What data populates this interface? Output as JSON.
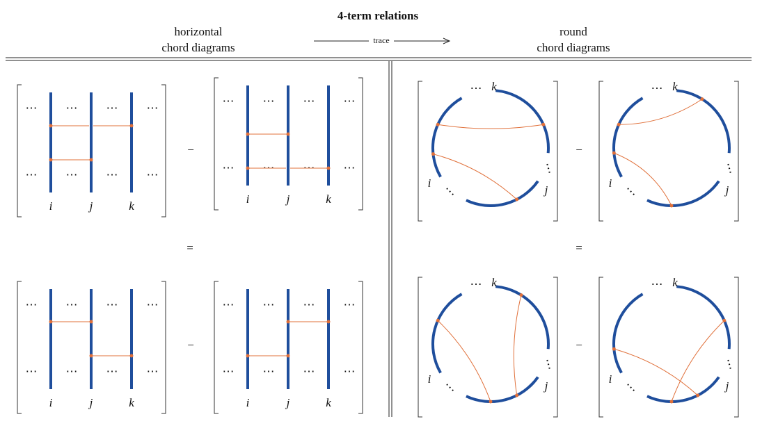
{
  "header": {
    "title": "4-term relations",
    "left_heading": [
      "horizontal",
      "chord diagrams"
    ],
    "arrow_label": "trace",
    "right_heading": [
      "round",
      "chord diagrams"
    ]
  },
  "horizontal_diagrams": [
    {
      "labels": [
        "i",
        "j",
        "k"
      ]
    },
    {
      "labels": [
        "i",
        "j",
        "k"
      ]
    },
    {
      "labels": [
        "i",
        "j",
        "k"
      ]
    },
    {
      "labels": [
        "i",
        "j",
        "k"
      ]
    }
  ],
  "round_diagrams": [
    {
      "labels": [
        "k",
        "i",
        "j"
      ]
    },
    {
      "labels": [
        "k",
        "i",
        "j"
      ]
    },
    {
      "labels": [
        "k",
        "i",
        "j"
      ]
    },
    {
      "labels": [
        "k",
        "i",
        "j"
      ]
    }
  ],
  "ellipsis": "⋯",
  "minus": "−",
  "equals": "="
}
